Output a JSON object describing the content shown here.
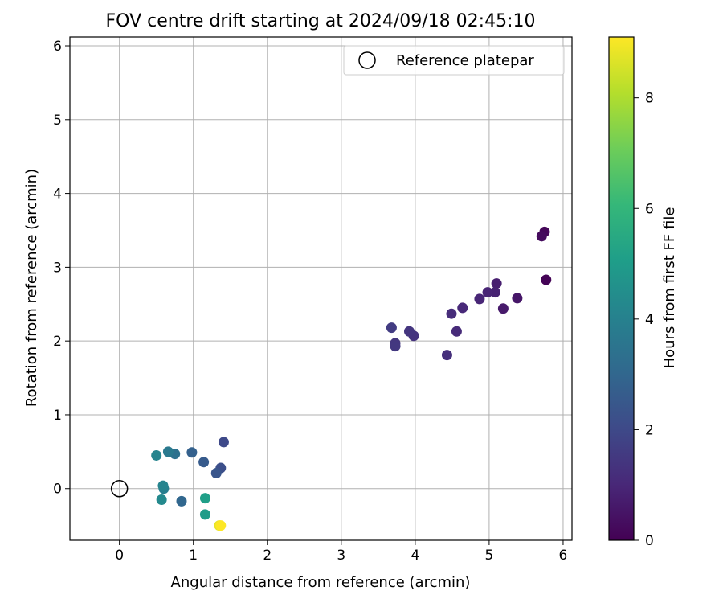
{
  "chart_data": {
    "type": "scatter",
    "title": "FOV centre drift starting at 2024/09/18 02:45:10",
    "xlabel": "Angular distance from reference (arcmin)",
    "ylabel": "Rotation from reference (arcmin)",
    "xlim": [
      -0.67,
      6.12
    ],
    "ylim": [
      -0.7,
      6.12
    ],
    "xticks": [
      0,
      1,
      2,
      3,
      4,
      5,
      6
    ],
    "yticks": [
      0,
      1,
      2,
      3,
      4,
      5,
      6
    ],
    "grid": true,
    "legend": {
      "position": "top-right",
      "entries": [
        "Reference platepar"
      ]
    },
    "reference_point": {
      "x": 0,
      "y": 0,
      "label": "Reference platepar"
    },
    "colorbar": {
      "label": "Hours from first FF file",
      "range": [
        0,
        9.1
      ],
      "ticks": [
        0,
        2,
        4,
        6,
        8
      ],
      "colormap": "viridis"
    },
    "points": [
      {
        "x": 5.77,
        "y": 2.83,
        "c": 0.05
      },
      {
        "x": 5.75,
        "y": 3.48,
        "c": 0.15
      },
      {
        "x": 5.71,
        "y": 3.42,
        "c": 0.25
      },
      {
        "x": 5.38,
        "y": 2.58,
        "c": 0.55
      },
      {
        "x": 5.19,
        "y": 2.44,
        "c": 0.65
      },
      {
        "x": 5.1,
        "y": 2.78,
        "c": 0.75
      },
      {
        "x": 5.08,
        "y": 2.66,
        "c": 0.85
      },
      {
        "x": 4.98,
        "y": 2.66,
        "c": 0.9
      },
      {
        "x": 4.87,
        "y": 2.57,
        "c": 0.95
      },
      {
        "x": 4.64,
        "y": 2.45,
        "c": 1.05
      },
      {
        "x": 4.56,
        "y": 2.13,
        "c": 1.1
      },
      {
        "x": 4.49,
        "y": 2.37,
        "c": 1.15
      },
      {
        "x": 4.43,
        "y": 1.81,
        "c": 1.25
      },
      {
        "x": 3.98,
        "y": 2.07,
        "c": 1.35
      },
      {
        "x": 3.92,
        "y": 2.13,
        "c": 1.4
      },
      {
        "x": 3.73,
        "y": 1.97,
        "c": 1.45
      },
      {
        "x": 3.73,
        "y": 1.93,
        "c": 1.5
      },
      {
        "x": 3.68,
        "y": 2.18,
        "c": 1.6
      },
      {
        "x": 1.41,
        "y": 0.63,
        "c": 2.0
      },
      {
        "x": 1.37,
        "y": 0.28,
        "c": 2.2
      },
      {
        "x": 1.31,
        "y": 0.21,
        "c": 2.4
      },
      {
        "x": 1.14,
        "y": 0.36,
        "c": 2.6
      },
      {
        "x": 0.98,
        "y": 0.49,
        "c": 2.8
      },
      {
        "x": 0.84,
        "y": -0.17,
        "c": 3.0
      },
      {
        "x": 0.75,
        "y": 0.47,
        "c": 3.4
      },
      {
        "x": 0.66,
        "y": 0.5,
        "c": 3.7
      },
      {
        "x": 0.6,
        "y": 0.0,
        "c": 3.9
      },
      {
        "x": 0.59,
        "y": 0.04,
        "c": 4.1
      },
      {
        "x": 0.57,
        "y": -0.15,
        "c": 4.3
      },
      {
        "x": 0.5,
        "y": 0.45,
        "c": 4.1
      },
      {
        "x": 1.16,
        "y": -0.13,
        "c": 5.1
      },
      {
        "x": 1.16,
        "y": -0.35,
        "c": 5.0
      },
      {
        "x": 1.35,
        "y": -0.5,
        "c": 8.8
      },
      {
        "x": 1.37,
        "y": -0.5,
        "c": 9.1
      }
    ]
  }
}
